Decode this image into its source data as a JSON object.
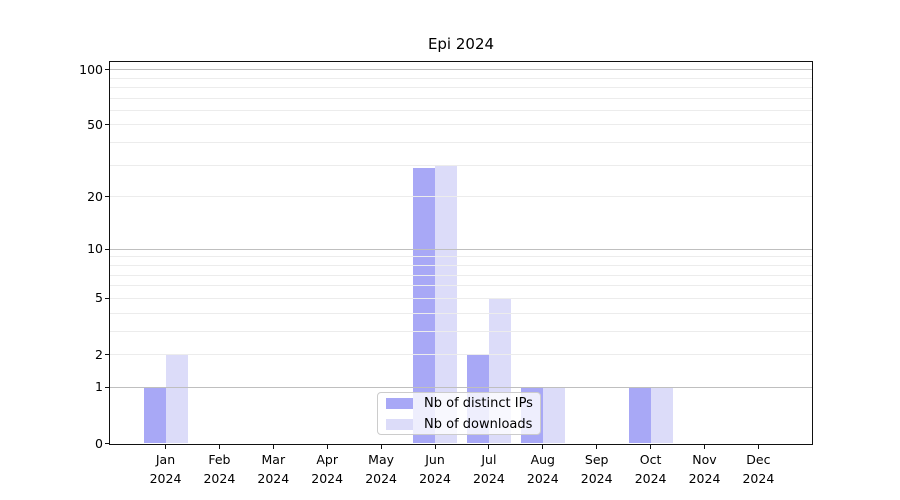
{
  "figure": {
    "title": "Epi 2024",
    "background": "#ffffff"
  },
  "legend": {
    "items": [
      {
        "label": "Nb of distinct IPs",
        "color": "#a8a8f6"
      },
      {
        "label": "Nb of downloads",
        "color": "#dcdcf9"
      }
    ]
  },
  "chart_data": {
    "type": "bar",
    "title": "Epi 2024",
    "categories": [
      "Jan",
      "Feb",
      "Mar",
      "Apr",
      "May",
      "Jun",
      "Jul",
      "Aug",
      "Sep",
      "Oct",
      "Nov",
      "Dec"
    ],
    "year_label": "2024",
    "series": [
      {
        "name": "Nb of distinct IPs",
        "color": "#a8a8f6",
        "values": [
          1,
          0,
          0,
          0,
          0,
          29,
          2,
          1,
          0,
          1,
          0,
          0
        ]
      },
      {
        "name": "Nb of downloads",
        "color": "#dcdcf9",
        "values": [
          2,
          0,
          0,
          0,
          0,
          30,
          5,
          1,
          0,
          1,
          0,
          0
        ]
      }
    ],
    "yscale": "log1p",
    "ylim": [
      0,
      110
    ],
    "xlabel": "",
    "ylabel": "",
    "ytick_values": [
      0,
      1,
      2,
      5,
      10,
      20,
      50,
      100
    ],
    "ytick_labels": [
      "0",
      "1",
      "2",
      "5",
      "10",
      "20",
      "50",
      "100"
    ],
    "minor_grid_values": [
      2,
      3,
      4,
      5,
      6,
      7,
      8,
      9,
      20,
      30,
      40,
      50,
      60,
      70,
      80,
      90
    ],
    "major_grid_values": [
      1,
      10,
      100
    ],
    "grid": "on",
    "grid_above_bars": true,
    "legend_position": "lower center",
    "colors": {
      "minor_grid": "#ececec",
      "major_grid": "#bfbfbf",
      "spine": "#111111",
      "text": "#000000"
    }
  }
}
